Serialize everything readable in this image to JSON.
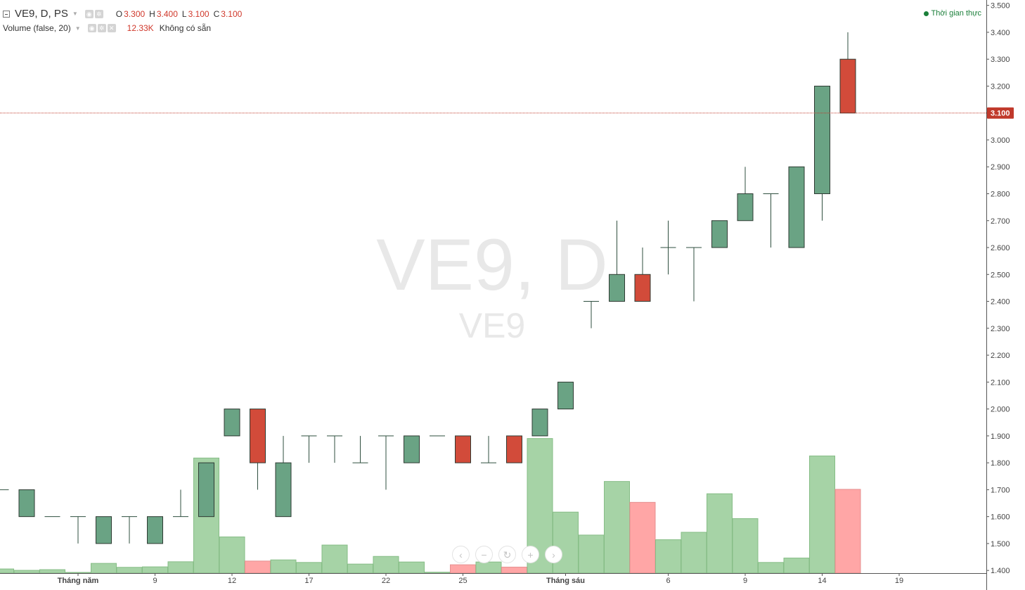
{
  "header": {
    "symbol_title": "VE9, D, PS",
    "ohlc": [
      {
        "key": "O",
        "value": "3.300"
      },
      {
        "key": "H",
        "value": "3.400"
      },
      {
        "key": "L",
        "value": "3.100"
      },
      {
        "key": "C",
        "value": "3.100"
      }
    ],
    "volume_label": "Volume (false, 20)",
    "volume_value": "12.33K",
    "volume_status": "Không có sẵn",
    "realtime_label": "Thời gian thực"
  },
  "watermark": {
    "main": "VE9, D",
    "sub": "VE9"
  },
  "icons": {
    "collapse": "minus-square-icon",
    "visibility": "eye-icon",
    "settings": "gear-icon",
    "remove": "close-icon",
    "scroll_left": "chevron-left-icon",
    "zoom_out": "minus-icon",
    "reset": "reset-icon",
    "zoom_in": "plus-icon",
    "scroll_right": "chevron-right-icon"
  },
  "nav_glyphs": {
    "scroll_left": "‹",
    "zoom_out": "−",
    "reset": "↻",
    "zoom_in": "+",
    "scroll_right": "›"
  },
  "tool_glyphs": {
    "eye": "◉",
    "gear": "✲",
    "close": "✕"
  },
  "colors": {
    "up_candle": "#6aa384",
    "down_candle": "#d24b3a",
    "up_volume": "#a6d3a6",
    "down_volume": "#ffa6a6",
    "last_price_line": "#c0392b",
    "realtime_dot": "#1b7f3a"
  },
  "chart_data": {
    "type": "candlestick",
    "last_price": 3.1,
    "last_price_label": "3.100",
    "y_range": [
      1.39,
      3.52
    ],
    "y_ticks": [
      "1.400",
      "1.500",
      "1.600",
      "1.700",
      "1.800",
      "1.900",
      "2.000",
      "2.100",
      "2.200",
      "2.300",
      "2.400",
      "2.500",
      "2.600",
      "2.700",
      "2.800",
      "2.900",
      "3.000",
      "3.100",
      "3.200",
      "3.300",
      "3.400",
      "3.500"
    ],
    "x_labels": [
      {
        "label": "Tháng năm",
        "index": 3,
        "bold": true
      },
      {
        "label": "9",
        "index": 6
      },
      {
        "label": "12",
        "index": 9
      },
      {
        "label": "17",
        "index": 12
      },
      {
        "label": "22",
        "index": 15
      },
      {
        "label": "25",
        "index": 18
      },
      {
        "label": "Tháng sáu",
        "index": 22,
        "bold": true
      },
      {
        "label": "6",
        "index": 26
      },
      {
        "label": "9",
        "index": 29
      },
      {
        "label": "14",
        "index": 32
      },
      {
        "label": "19",
        "index": 35
      }
    ],
    "candles": [
      {
        "o": 1.7,
        "h": 1.7,
        "l": 1.7,
        "c": 1.7,
        "v": 1.8
      },
      {
        "o": 1.6,
        "h": 1.7,
        "l": 1.6,
        "c": 1.7,
        "v": 1.2
      },
      {
        "o": 1.6,
        "h": 1.6,
        "l": 1.6,
        "c": 1.6,
        "v": 1.5
      },
      {
        "o": 1.6,
        "h": 1.6,
        "l": 1.5,
        "c": 1.6,
        "v": 0.3
      },
      {
        "o": 1.5,
        "h": 1.6,
        "l": 1.5,
        "c": 1.6,
        "v": 4.2
      },
      {
        "o": 1.6,
        "h": 1.6,
        "l": 1.5,
        "c": 1.6,
        "v": 2.5
      },
      {
        "o": 1.5,
        "h": 1.6,
        "l": 1.5,
        "c": 1.6,
        "v": 2.7
      },
      {
        "o": 1.6,
        "h": 1.7,
        "l": 1.6,
        "c": 1.6,
        "v": 4.9
      },
      {
        "o": 1.6,
        "h": 1.8,
        "l": 1.6,
        "c": 1.8,
        "v": 49.6
      },
      {
        "o": 1.9,
        "h": 2.0,
        "l": 1.9,
        "c": 2.0,
        "v": 15.6
      },
      {
        "o": 2.0,
        "h": 2.0,
        "l": 1.7,
        "c": 1.8,
        "v": 5.2
      },
      {
        "o": 1.6,
        "h": 1.9,
        "l": 1.6,
        "c": 1.8,
        "v": 5.7
      },
      {
        "o": 1.9,
        "h": 1.9,
        "l": 1.8,
        "c": 1.9,
        "v": 4.6
      },
      {
        "o": 1.9,
        "h": 1.9,
        "l": 1.8,
        "c": 1.9,
        "v": 12.1
      },
      {
        "o": 1.8,
        "h": 1.9,
        "l": 1.8,
        "c": 1.8,
        "v": 3.9
      },
      {
        "o": 1.9,
        "h": 1.9,
        "l": 1.7,
        "c": 1.9,
        "v": 7.2
      },
      {
        "o": 1.8,
        "h": 1.9,
        "l": 1.8,
        "c": 1.9,
        "v": 4.8
      },
      {
        "o": 1.9,
        "h": 1.9,
        "l": 1.9,
        "c": 1.9,
        "v": 0.4
      },
      {
        "o": 1.9,
        "h": 1.9,
        "l": 1.8,
        "c": 1.8,
        "v": 3.6
      },
      {
        "o": 1.8,
        "h": 1.9,
        "l": 1.8,
        "c": 1.8,
        "v": 4.8
      },
      {
        "o": 1.9,
        "h": 1.9,
        "l": 1.8,
        "c": 1.8,
        "v": 2.6
      },
      {
        "o": 1.9,
        "h": 2.0,
        "l": 1.9,
        "c": 2.0,
        "v": 58.0
      },
      {
        "o": 2.0,
        "h": 2.1,
        "l": 2.0,
        "c": 2.1,
        "v": 26.3
      },
      {
        "o": 2.4,
        "h": 2.4,
        "l": 2.3,
        "c": 2.4,
        "v": 16.4
      },
      {
        "o": 2.4,
        "h": 2.7,
        "l": 2.4,
        "c": 2.5,
        "v": 39.5
      },
      {
        "o": 2.5,
        "h": 2.6,
        "l": 2.4,
        "c": 2.4,
        "v": 30.5
      },
      {
        "o": 2.6,
        "h": 2.7,
        "l": 2.5,
        "c": 2.6,
        "v": 14.4
      },
      {
        "o": 2.6,
        "h": 2.6,
        "l": 2.4,
        "c": 2.6,
        "v": 17.6
      },
      {
        "o": 2.6,
        "h": 2.7,
        "l": 2.6,
        "c": 2.7,
        "v": 34.2
      },
      {
        "o": 2.7,
        "h": 2.9,
        "l": 2.7,
        "c": 2.8,
        "v": 23.5
      },
      {
        "o": 2.8,
        "h": 2.8,
        "l": 2.6,
        "c": 2.8,
        "v": 4.6
      },
      {
        "o": 2.6,
        "h": 2.9,
        "l": 2.6,
        "c": 2.9,
        "v": 6.5
      },
      {
        "o": 2.8,
        "h": 3.2,
        "l": 2.7,
        "c": 3.2,
        "v": 50.5
      },
      {
        "o": 3.3,
        "h": 3.4,
        "l": 3.1,
        "c": 3.1,
        "v": 36.1
      }
    ]
  }
}
